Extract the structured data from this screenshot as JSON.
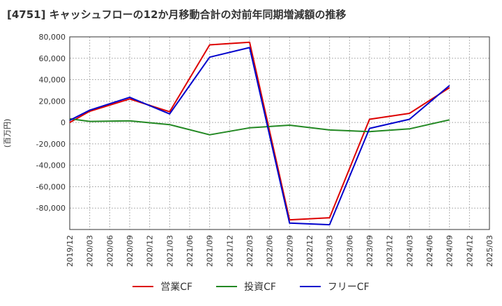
{
  "chart_data": {
    "type": "line",
    "title": "[4751]  キャッシュフローの12か月移動合計の対前年同期増減額の推移",
    "ylabel": "(百万円)",
    "xlabel": "",
    "ylim": [
      -100000,
      80000
    ],
    "yticks": [
      80000,
      60000,
      40000,
      20000,
      0,
      -20000,
      -40000,
      -60000,
      -80000
    ],
    "ytick_labels": [
      "80,000",
      "60,000",
      "40,000",
      "20,000",
      "0",
      "-20,000",
      "-40,000",
      "-60,000",
      "-80,000"
    ],
    "x": [
      "2019/12",
      "2020/03",
      "2020/06",
      "2020/09",
      "2020/12",
      "2021/03",
      "2021/06",
      "2021/09",
      "2021/12",
      "2022/03",
      "2022/06",
      "2022/09",
      "2022/12",
      "2023/03",
      "2023/06",
      "2023/09",
      "2023/12",
      "2024/03",
      "2024/06",
      "2024/09",
      "2024/12",
      "2025/03"
    ],
    "grid": true,
    "legend_position": "bottom",
    "series": [
      {
        "name": "営業CF",
        "color": "#dd0000",
        "values": [
          0,
          10500,
          null,
          22000,
          null,
          10000,
          null,
          72500,
          null,
          75000,
          null,
          -91000,
          null,
          -89000,
          null,
          3000,
          null,
          8500,
          null,
          32500,
          null,
          null
        ]
      },
      {
        "name": "投資CF",
        "color": "#228822",
        "values": [
          3500,
          1000,
          null,
          1500,
          null,
          -2000,
          null,
          -11500,
          null,
          -5000,
          null,
          -2500,
          null,
          -7000,
          null,
          -8500,
          null,
          -6000,
          null,
          2500,
          null,
          null
        ]
      },
      {
        "name": "フリーCF",
        "color": "#0000cc",
        "values": [
          2000,
          11500,
          null,
          23500,
          null,
          8000,
          null,
          61000,
          null,
          70000,
          null,
          -94000,
          null,
          -95500,
          null,
          -5500,
          null,
          3000,
          null,
          34500,
          null,
          null
        ]
      }
    ]
  }
}
